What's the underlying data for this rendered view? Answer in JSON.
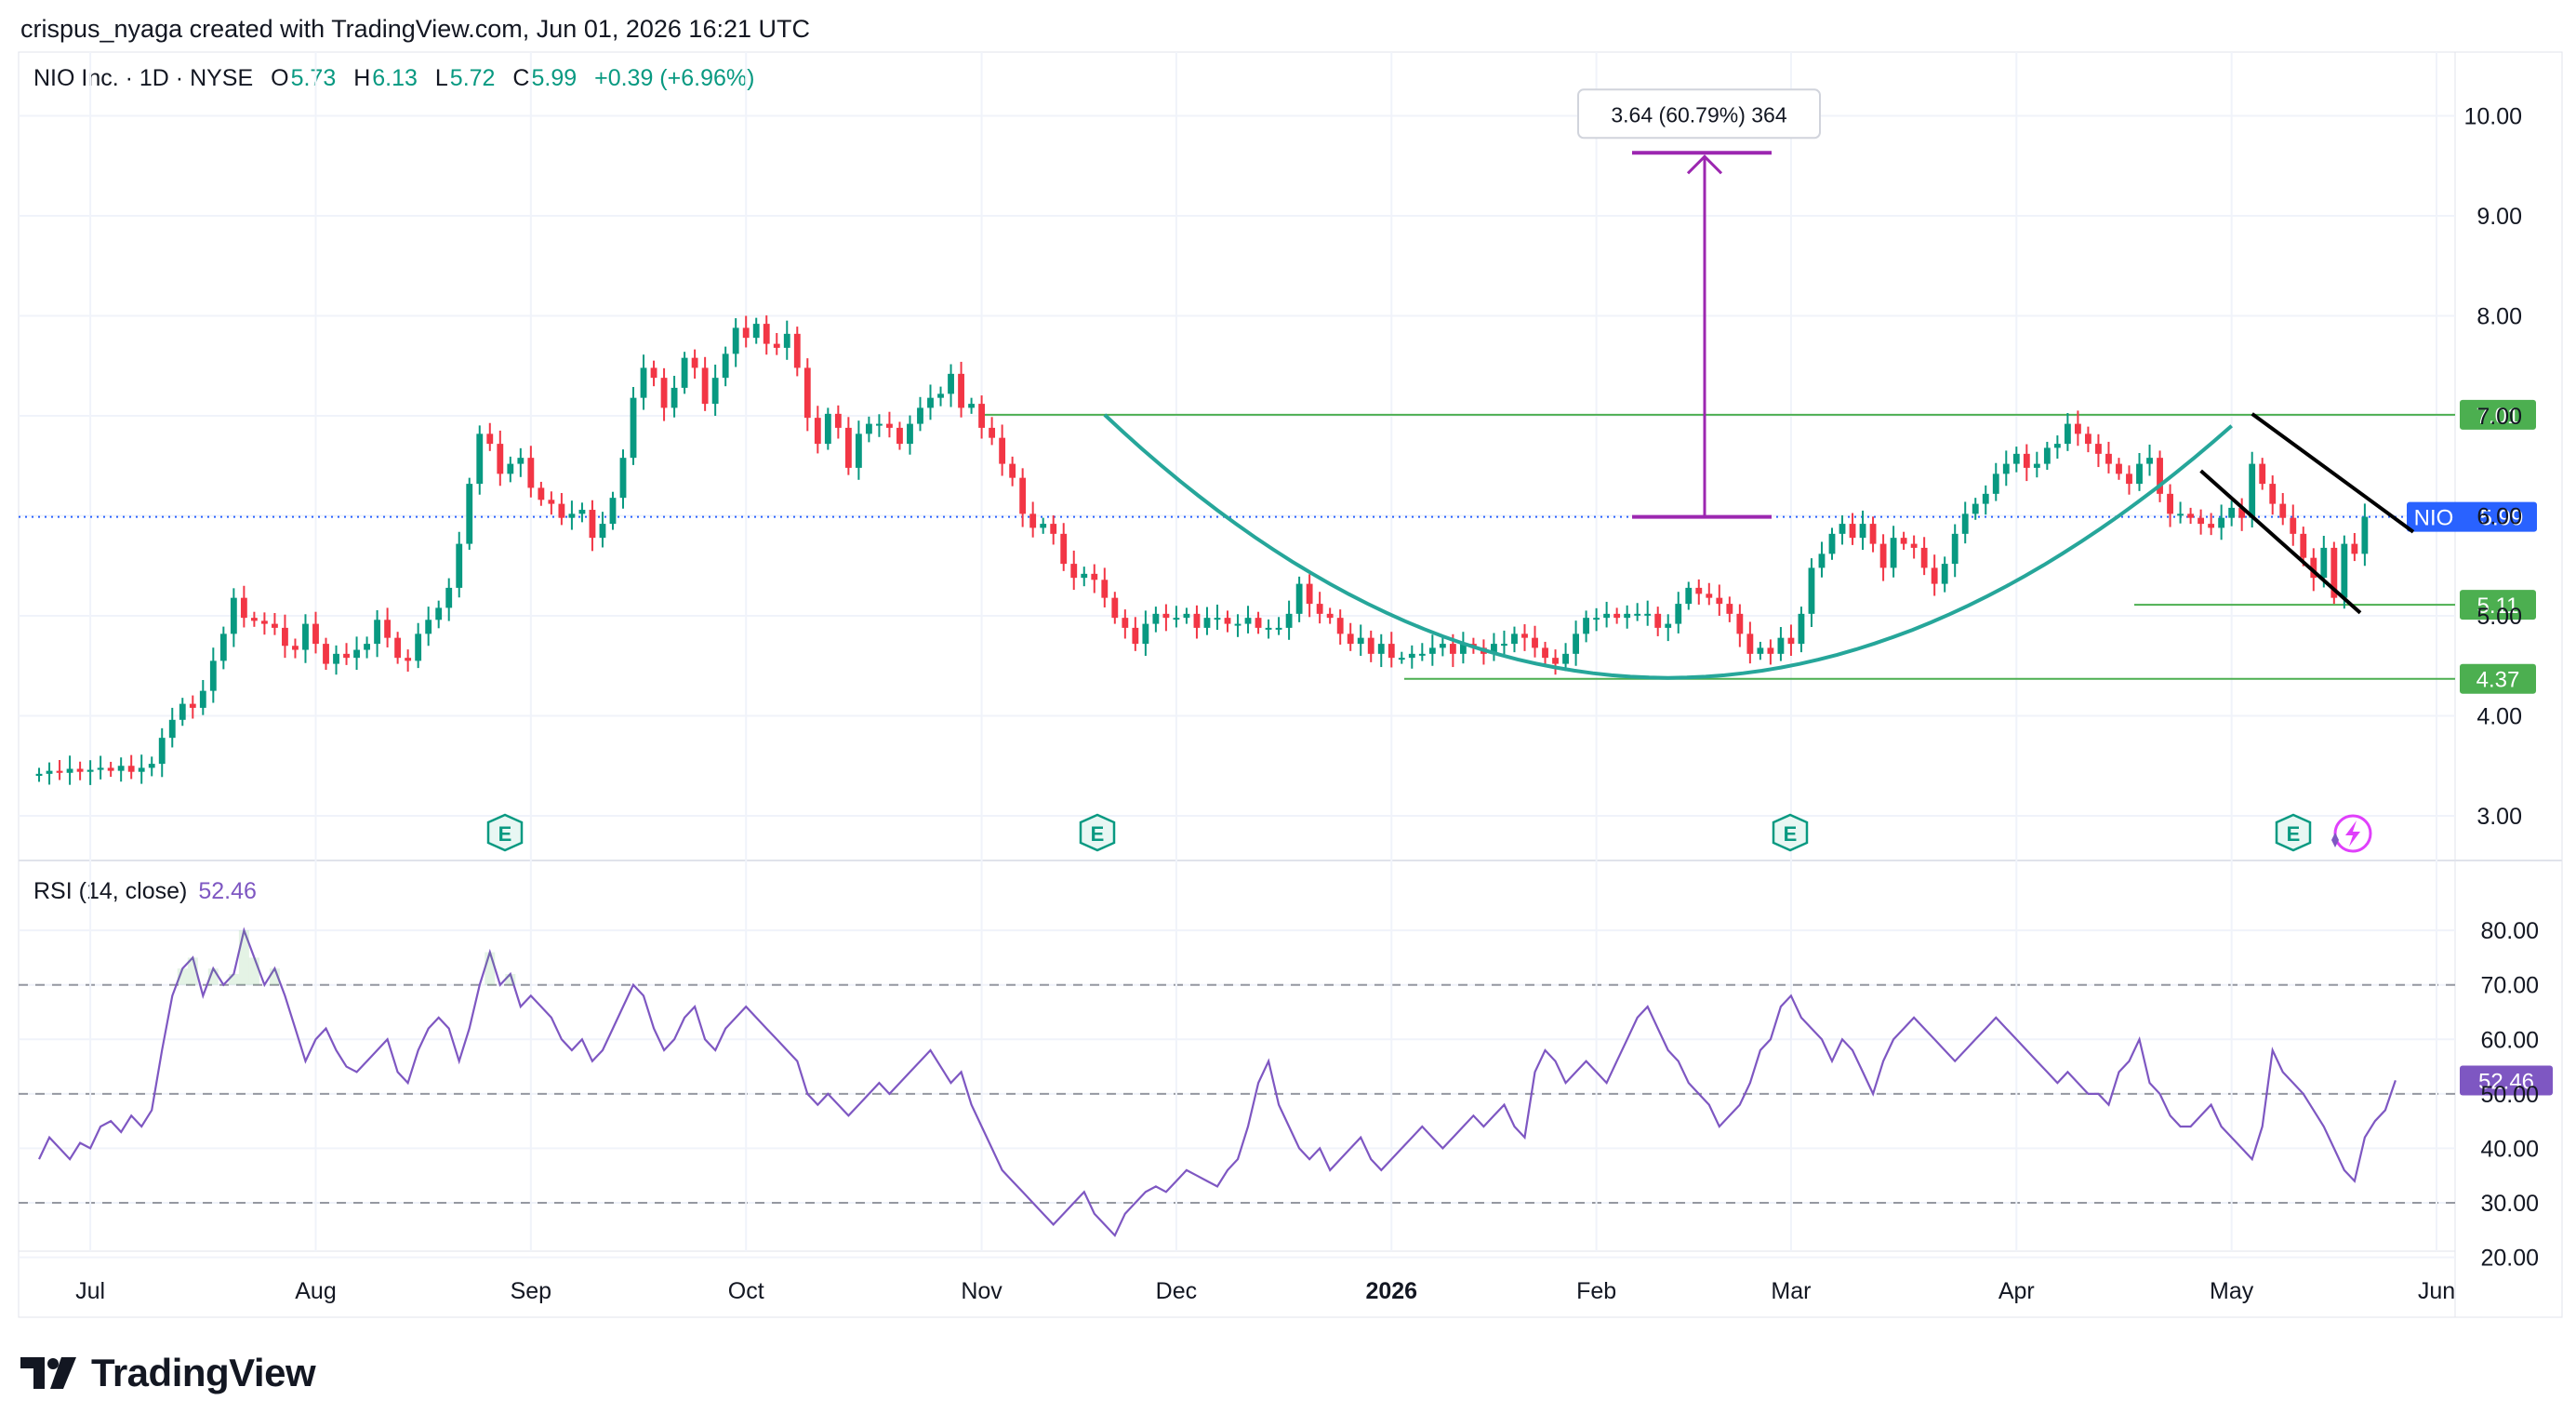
{
  "header": {
    "attribution": "crispus_nyaga created with TradingView.com, Jun 01, 2026 16:21 UTC"
  },
  "legend": {
    "symbol": "NIO Inc. · 1D · NYSE",
    "open_label": "O",
    "open": "5.73",
    "high_label": "H",
    "high": "6.13",
    "low_label": "L",
    "low": "5.72",
    "close_label": "C",
    "close": "5.99",
    "change": "+0.39 (+6.96%)"
  },
  "measure_box": "3.64 (60.79%) 364",
  "rsi": {
    "label": "RSI (14, close)",
    "value": "52.46"
  },
  "brand": "TradingView",
  "colors": {
    "up": "#089981",
    "down": "#f23645",
    "rsi": "#7e57c2",
    "level": "#4caf50",
    "cup": "#26a69a",
    "price_tag": "#2962ff",
    "measure": "#9c27b0"
  },
  "chart_data": [
    {
      "type": "candlestick",
      "ylim": [
        2.6,
        10.6
      ],
      "y_ticks": [
        "3.00",
        "4.00",
        "5.00",
        "6.00",
        "7.00",
        "8.00",
        "9.00",
        "10.00"
      ],
      "x_labels": [
        "Jul",
        "Aug",
        "Sep",
        "Oct",
        "Nov",
        "Dec",
        "2026",
        "Feb",
        "Mar",
        "Apr",
        "May",
        "Jun"
      ],
      "x_label_index": [
        5,
        27,
        48,
        69,
        92,
        111,
        132,
        152,
        171,
        193,
        214,
        234
      ],
      "close": [
        3.42,
        3.45,
        3.43,
        3.47,
        3.44,
        3.46,
        3.48,
        3.45,
        3.5,
        3.44,
        3.48,
        3.52,
        3.78,
        3.96,
        4.12,
        4.08,
        4.25,
        4.55,
        4.82,
        5.18,
        4.98,
        4.95,
        4.92,
        4.88,
        4.7,
        4.66,
        4.92,
        4.72,
        4.52,
        4.62,
        4.58,
        4.66,
        4.72,
        4.96,
        4.78,
        4.58,
        4.55,
        4.82,
        4.96,
        5.08,
        5.28,
        5.72,
        6.32,
        6.82,
        6.72,
        6.42,
        6.52,
        6.58,
        6.28,
        6.16,
        6.12,
        5.98,
        6.02,
        6.06,
        5.78,
        5.92,
        6.18,
        6.58,
        7.18,
        7.48,
        7.38,
        7.08,
        7.28,
        7.58,
        7.48,
        7.12,
        7.38,
        7.62,
        7.88,
        7.78,
        7.92,
        7.72,
        7.68,
        7.82,
        7.48,
        6.98,
        6.72,
        7.02,
        6.88,
        6.48,
        6.82,
        6.92,
        6.92,
        6.88,
        6.72,
        6.92,
        7.08,
        7.18,
        7.22,
        7.42,
        7.08,
        7.12,
        6.88,
        6.78,
        6.52,
        6.38,
        6.02,
        5.88,
        5.92,
        5.82,
        5.52,
        5.38,
        5.42,
        5.36,
        5.18,
        4.98,
        4.88,
        4.72,
        4.92,
        5.02,
        4.98,
        4.98,
        5.02,
        4.88,
        4.98,
        4.98,
        4.92,
        4.92,
        4.98,
        4.88,
        4.88,
        4.88,
        5.02,
        5.32,
        5.12,
        5.02,
        4.98,
        4.82,
        4.72,
        4.78,
        4.62,
        4.72,
        4.58,
        4.58,
        4.62,
        4.62,
        4.68,
        4.72,
        4.62,
        4.72,
        4.68,
        4.62,
        4.72,
        4.72,
        4.82,
        4.78,
        4.68,
        4.58,
        4.52,
        4.62,
        4.82,
        4.98,
        4.98,
        5.02,
        4.98,
        5.02,
        5.02,
        5.02,
        4.88,
        4.92,
        5.12,
        5.28,
        5.22,
        5.18,
        5.12,
        5.02,
        4.82,
        4.62,
        4.68,
        4.62,
        4.78,
        4.72,
        5.02,
        5.48,
        5.62,
        5.82,
        5.92,
        5.78,
        5.92,
        5.72,
        5.48,
        5.78,
        5.72,
        5.68,
        5.48,
        5.32,
        5.52,
        5.82,
        6.02,
        6.12,
        6.22,
        6.42,
        6.52,
        6.62,
        6.48,
        6.52,
        6.68,
        6.72,
        6.92,
        6.82,
        6.72,
        6.62,
        6.52,
        6.42,
        6.32,
        6.52,
        6.58,
        6.22,
        6.02,
        6.02,
        5.98,
        5.92,
        5.88,
        5.98,
        6.08,
        5.98,
        6.52,
        6.32,
        6.12,
        5.98,
        5.82,
        5.58,
        5.38,
        5.68,
        5.18,
        5.72,
        5.62,
        5.99
      ],
      "open_prev_close": true,
      "levels": [
        7.01,
        5.11,
        4.37
      ],
      "current_price": 5.99,
      "ticker": "NIO",
      "measure": {
        "from": 5.99,
        "to": 9.63,
        "change": 3.64,
        "percent": 60.79,
        "bars": 364
      },
      "patterns": [
        "cup",
        "descending channel"
      ]
    },
    {
      "type": "line",
      "title": "RSI (14, close)",
      "ylim": [
        16,
        86
      ],
      "y_ticks": [
        "20.00",
        "30.00",
        "40.00",
        "50.00",
        "60.00",
        "70.00",
        "80.00"
      ],
      "bands": [
        30,
        50,
        70
      ],
      "last": 52.46,
      "values": [
        38,
        42,
        40,
        38,
        41,
        40,
        44,
        45,
        43,
        46,
        44,
        47,
        58,
        68,
        73,
        75,
        68,
        73,
        70,
        72,
        80,
        75,
        70,
        73,
        68,
        62,
        56,
        60,
        62,
        58,
        55,
        54,
        56,
        58,
        60,
        54,
        52,
        58,
        62,
        64,
        62,
        56,
        62,
        70,
        76,
        70,
        72,
        66,
        68,
        66,
        64,
        60,
        58,
        60,
        56,
        58,
        62,
        66,
        70,
        68,
        62,
        58,
        60,
        64,
        66,
        60,
        58,
        62,
        64,
        66,
        64,
        62,
        60,
        58,
        56,
        50,
        48,
        50,
        48,
        46,
        48,
        50,
        52,
        50,
        52,
        54,
        56,
        58,
        55,
        52,
        54,
        48,
        44,
        40,
        36,
        34,
        32,
        30,
        28,
        26,
        28,
        30,
        32,
        28,
        26,
        24,
        28,
        30,
        32,
        33,
        32,
        34,
        36,
        35,
        34,
        33,
        36,
        38,
        44,
        52,
        56,
        48,
        44,
        40,
        38,
        40,
        36,
        38,
        40,
        42,
        38,
        36,
        38,
        40,
        42,
        44,
        42,
        40,
        42,
        44,
        46,
        44,
        46,
        48,
        44,
        42,
        54,
        58,
        56,
        52,
        54,
        56,
        54,
        52,
        56,
        60,
        64,
        66,
        62,
        58,
        56,
        52,
        50,
        48,
        44,
        46,
        48,
        52,
        58,
        60,
        66,
        68,
        64,
        62,
        60,
        56,
        60,
        58,
        54,
        50,
        56,
        60,
        62,
        64,
        62,
        60,
        58,
        56,
        58,
        60,
        62,
        64,
        62,
        60,
        58,
        56,
        54,
        52,
        54,
        52,
        50,
        50,
        48,
        54,
        56,
        60,
        52,
        50,
        46,
        44,
        44,
        46,
        48,
        44,
        42,
        40,
        38,
        44,
        58,
        54,
        52,
        50,
        47,
        44,
        40,
        36,
        34,
        42,
        45,
        47,
        52.46
      ]
    }
  ]
}
